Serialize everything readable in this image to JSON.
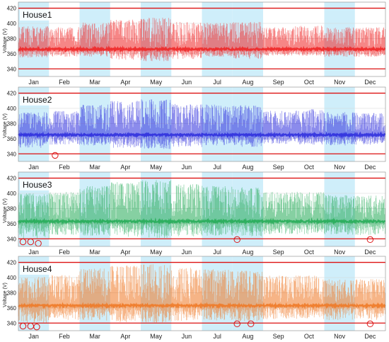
{
  "chart_data": [
    {
      "type": "line",
      "title": "House1",
      "ylabel": "Voltage (V)",
      "ylim": [
        330,
        428
      ],
      "yticks": [
        340,
        360,
        380,
        400,
        420
      ],
      "x_categories": [
        "Jan",
        "Feb",
        "Mar",
        "Apr",
        "May",
        "Jun",
        "Jul",
        "Aug",
        "Sep",
        "Oct",
        "Nov",
        "Dec"
      ],
      "shaded_months": [
        "Jan",
        "Mar",
        "May",
        "Jul",
        "Aug",
        "Nov"
      ],
      "limit_lines": [
        340,
        420
      ],
      "series": [
        {
          "color": "#ee2222",
          "baseline": 366,
          "monthly_min": [
            355,
            356,
            356,
            352,
            350,
            353,
            356,
            353,
            357,
            357,
            356,
            356
          ],
          "monthly_max": [
            396,
            395,
            401,
            405,
            408,
            402,
            401,
            402,
            395,
            397,
            395,
            395
          ]
        }
      ],
      "violations": []
    },
    {
      "type": "line",
      "title": "House2",
      "ylabel": "Voltage (V)",
      "ylim": [
        330,
        428
      ],
      "yticks": [
        340,
        360,
        380,
        400,
        420
      ],
      "x_categories": [
        "Jan",
        "Feb",
        "Mar",
        "Apr",
        "May",
        "Jun",
        "Jul",
        "Aug",
        "Sep",
        "Oct",
        "Nov",
        "Dec"
      ],
      "shaded_months": [
        "Jan",
        "Mar",
        "May",
        "Jul",
        "Aug",
        "Nov"
      ],
      "limit_lines": [
        340,
        420
      ],
      "series": [
        {
          "color": "#2b2bdd",
          "baseline": 365,
          "monthly_min": [
            348,
            352,
            351,
            348,
            346,
            349,
            351,
            349,
            353,
            352,
            351,
            352
          ],
          "monthly_max": [
            395,
            397,
            405,
            410,
            412,
            406,
            405,
            404,
            397,
            399,
            395,
            394
          ]
        }
      ],
      "violations": [
        {
          "month": 1.2,
          "value": 338
        }
      ]
    },
    {
      "type": "line",
      "title": "House3",
      "ylabel": "Voltage (V)",
      "ylim": [
        330,
        428
      ],
      "yticks": [
        340,
        360,
        380,
        400,
        420
      ],
      "x_categories": [
        "Jan",
        "Feb",
        "Mar",
        "Apr",
        "May",
        "Jun",
        "Jul",
        "Aug",
        "Sep",
        "Oct",
        "Nov",
        "Dec"
      ],
      "shaded_months": [
        "Jan",
        "Mar",
        "May",
        "Jul",
        "Aug",
        "Nov"
      ],
      "limit_lines": [
        340,
        420
      ],
      "series": [
        {
          "color": "#22aa55",
          "baseline": 363,
          "monthly_min": [
            340,
            345,
            344,
            342,
            341,
            343,
            344,
            343,
            346,
            346,
            345,
            345
          ],
          "monthly_max": [
            400,
            402,
            410,
            415,
            418,
            412,
            410,
            408,
            402,
            402,
            398,
            397
          ]
        }
      ],
      "violations": [
        {
          "month": 0.15,
          "value": 336
        },
        {
          "month": 0.4,
          "value": 336
        },
        {
          "month": 0.65,
          "value": 334
        },
        {
          "month": 7.15,
          "value": 339
        },
        {
          "month": 11.5,
          "value": 339
        }
      ]
    },
    {
      "type": "line",
      "title": "House4",
      "ylabel": "Voltage (V)",
      "ylim": [
        330,
        428
      ],
      "yticks": [
        340,
        360,
        380,
        400,
        420
      ],
      "x_categories": [
        "Jan",
        "Feb",
        "Mar",
        "Apr",
        "May",
        "Jun",
        "Jul",
        "Aug",
        "Sep",
        "Oct",
        "Nov",
        "Dec"
      ],
      "shaded_months": [
        "Jan",
        "Mar",
        "May",
        "Jul",
        "Aug",
        "Nov"
      ],
      "limit_lines": [
        340,
        420
      ],
      "series": [
        {
          "color": "#ee7722",
          "baseline": 363,
          "monthly_min": [
            340,
            344,
            343,
            341,
            340,
            342,
            343,
            342,
            345,
            345,
            344,
            344
          ],
          "monthly_max": [
            401,
            404,
            412,
            416,
            418,
            413,
            411,
            409,
            403,
            403,
            398,
            398
          ]
        }
      ],
      "violations": [
        {
          "month": 0.15,
          "value": 336
        },
        {
          "month": 0.4,
          "value": 336
        },
        {
          "month": 0.6,
          "value": 335
        },
        {
          "month": 7.15,
          "value": 339
        },
        {
          "month": 7.6,
          "value": 339
        },
        {
          "month": 11.5,
          "value": 339
        }
      ]
    }
  ]
}
